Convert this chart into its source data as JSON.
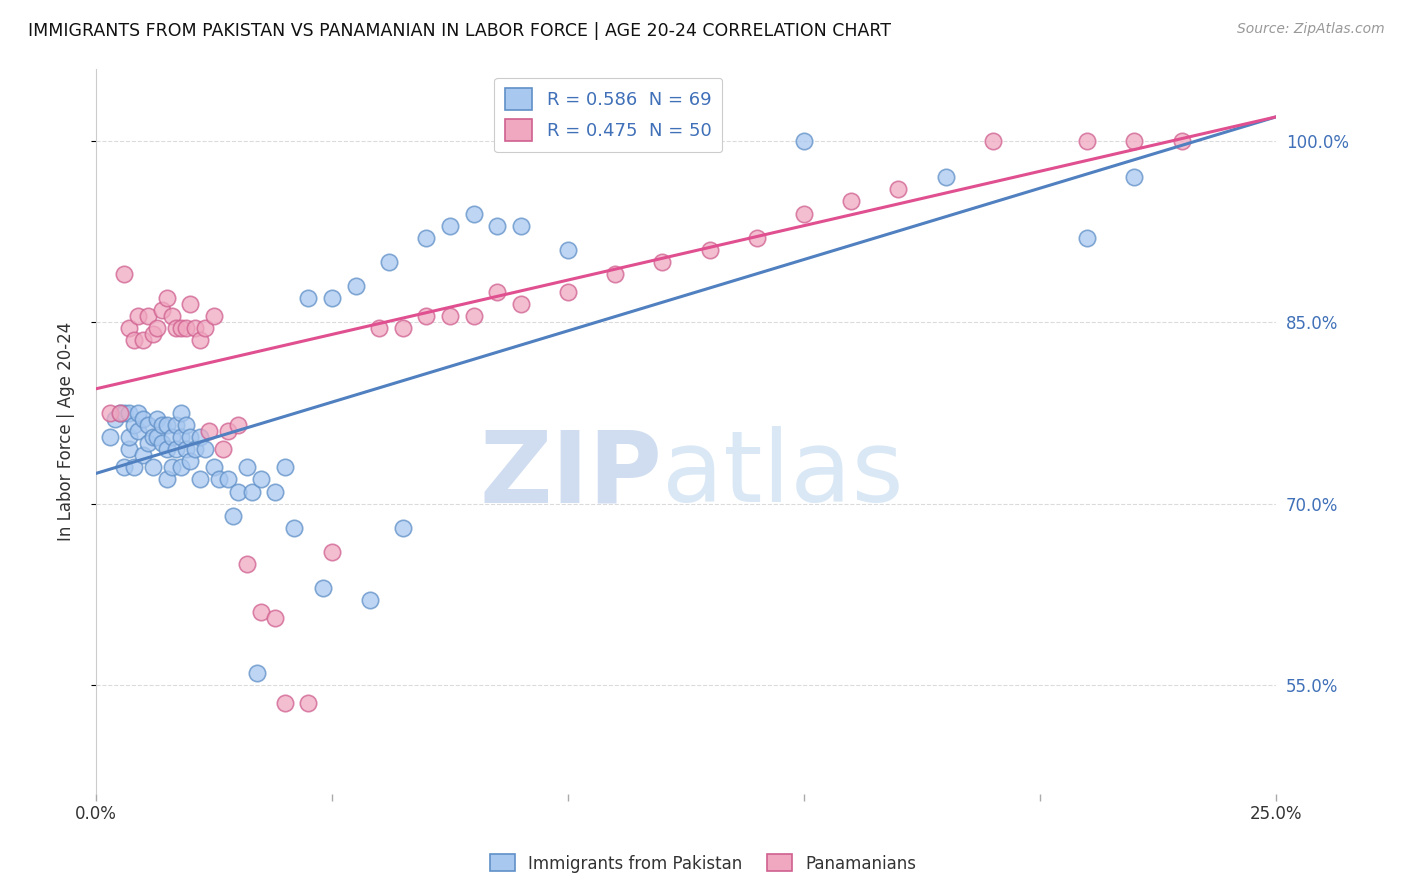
{
  "title": "IMMIGRANTS FROM PAKISTAN VS PANAMANIAN IN LABOR FORCE | AGE 20-24 CORRELATION CHART",
  "source": "Source: ZipAtlas.com",
  "ylabel": "In Labor Force | Age 20-24",
  "ylabel_right_ticks": [
    "55.0%",
    "70.0%",
    "85.0%",
    "100.0%"
  ],
  "ylabel_right_values": [
    0.55,
    0.7,
    0.85,
    1.0
  ],
  "xlim": [
    0.0,
    0.25
  ],
  "ylim": [
    0.46,
    1.06
  ],
  "blue_fill": "#a8c8f0",
  "blue_edge": "#6090c8",
  "pink_fill": "#f0a8c0",
  "pink_edge": "#d06090",
  "blue_line_color": "#5080c0",
  "pink_line_color": "#e05090",
  "legend_text_color": "#4070b8",
  "legend_blue_label": "R = 0.586  N = 69",
  "legend_pink_label": "R = 0.475  N = 50",
  "background_color": "#ffffff",
  "grid_color": "#cccccc",
  "blue_trend_x": [
    0.0,
    0.25
  ],
  "blue_trend_y": [
    0.725,
    1.02
  ],
  "pink_trend_x": [
    0.0,
    0.25
  ],
  "pink_trend_y": [
    0.795,
    1.02
  ],
  "blue_scatter_x": [
    0.003,
    0.004,
    0.005,
    0.006,
    0.006,
    0.007,
    0.007,
    0.007,
    0.008,
    0.008,
    0.009,
    0.009,
    0.01,
    0.01,
    0.011,
    0.011,
    0.012,
    0.012,
    0.013,
    0.013,
    0.014,
    0.014,
    0.015,
    0.015,
    0.015,
    0.016,
    0.016,
    0.017,
    0.017,
    0.018,
    0.018,
    0.018,
    0.019,
    0.019,
    0.02,
    0.02,
    0.021,
    0.022,
    0.022,
    0.023,
    0.025,
    0.026,
    0.028,
    0.029,
    0.03,
    0.032,
    0.033,
    0.034,
    0.035,
    0.038,
    0.04,
    0.042,
    0.045,
    0.048,
    0.05,
    0.055,
    0.058,
    0.062,
    0.065,
    0.07,
    0.075,
    0.08,
    0.085,
    0.09,
    0.1,
    0.15,
    0.18,
    0.21,
    0.22
  ],
  "blue_scatter_y": [
    0.755,
    0.77,
    0.775,
    0.73,
    0.775,
    0.745,
    0.755,
    0.775,
    0.73,
    0.765,
    0.76,
    0.775,
    0.74,
    0.77,
    0.75,
    0.765,
    0.73,
    0.755,
    0.755,
    0.77,
    0.75,
    0.765,
    0.72,
    0.745,
    0.765,
    0.73,
    0.755,
    0.745,
    0.765,
    0.73,
    0.755,
    0.775,
    0.745,
    0.765,
    0.735,
    0.755,
    0.745,
    0.72,
    0.755,
    0.745,
    0.73,
    0.72,
    0.72,
    0.69,
    0.71,
    0.73,
    0.71,
    0.56,
    0.72,
    0.71,
    0.73,
    0.68,
    0.87,
    0.63,
    0.87,
    0.88,
    0.62,
    0.9,
    0.68,
    0.92,
    0.93,
    0.94,
    0.93,
    0.93,
    0.91,
    1.0,
    0.97,
    0.92,
    0.97
  ],
  "pink_scatter_x": [
    0.003,
    0.005,
    0.006,
    0.007,
    0.008,
    0.009,
    0.01,
    0.011,
    0.012,
    0.013,
    0.014,
    0.015,
    0.016,
    0.017,
    0.018,
    0.019,
    0.02,
    0.021,
    0.022,
    0.023,
    0.024,
    0.025,
    0.027,
    0.028,
    0.03,
    0.032,
    0.035,
    0.038,
    0.04,
    0.045,
    0.05,
    0.06,
    0.065,
    0.07,
    0.075,
    0.08,
    0.085,
    0.09,
    0.1,
    0.11,
    0.13,
    0.15,
    0.17,
    0.19,
    0.21,
    0.22,
    0.23,
    0.12,
    0.14,
    0.16
  ],
  "pink_scatter_y": [
    0.775,
    0.775,
    0.89,
    0.845,
    0.835,
    0.855,
    0.835,
    0.855,
    0.84,
    0.845,
    0.86,
    0.87,
    0.855,
    0.845,
    0.845,
    0.845,
    0.865,
    0.845,
    0.835,
    0.845,
    0.76,
    0.855,
    0.745,
    0.76,
    0.765,
    0.65,
    0.61,
    0.605,
    0.535,
    0.535,
    0.66,
    0.845,
    0.845,
    0.855,
    0.855,
    0.855,
    0.875,
    0.865,
    0.875,
    0.89,
    0.91,
    0.94,
    0.96,
    1.0,
    1.0,
    1.0,
    1.0,
    0.9,
    0.92,
    0.95
  ]
}
